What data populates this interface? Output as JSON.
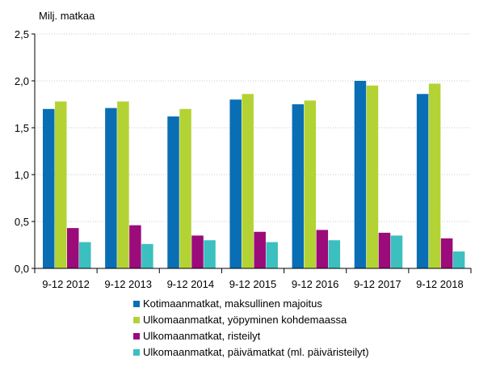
{
  "chart_data": {
    "type": "bar",
    "title": "",
    "xlabel": "",
    "ylabel": "Milj. matkaa",
    "ylim": [
      0,
      2.5
    ],
    "yticks": [
      0,
      0.5,
      1.0,
      1.5,
      2.0,
      2.5
    ],
    "ytick_labels": [
      "0,0",
      "0,5",
      "1,0",
      "1,5",
      "2,0",
      "2,5"
    ],
    "grid": true,
    "legend_position": "bottom",
    "categories": [
      "9-12 2012",
      "9-12 2013",
      "9-12 2014",
      "9-12 2015",
      "9-12 2016",
      "9-12 2017",
      "9-12 2018"
    ],
    "series": [
      {
        "name": "Kotimaanmatkat, maksullinen majoitus",
        "color": "#0a6eb4",
        "values": [
          1.7,
          1.71,
          1.62,
          1.8,
          1.75,
          2.0,
          1.86
        ]
      },
      {
        "name": "Ulkomaanmatkat, yöpyminen kohdemaassa",
        "color": "#b3d334",
        "values": [
          1.78,
          1.78,
          1.7,
          1.86,
          1.79,
          1.95,
          1.97
        ]
      },
      {
        "name": "Ulkomaanmatkat, risteilyt",
        "color": "#9b0b7a",
        "values": [
          0.43,
          0.46,
          0.35,
          0.39,
          0.41,
          0.38,
          0.32
        ]
      },
      {
        "name": "Ulkomaanmatkat, päivämatkat (ml. päiväristeilyt)",
        "color": "#3cbfbf",
        "values": [
          0.28,
          0.26,
          0.3,
          0.28,
          0.3,
          0.35,
          0.18
        ]
      }
    ]
  }
}
